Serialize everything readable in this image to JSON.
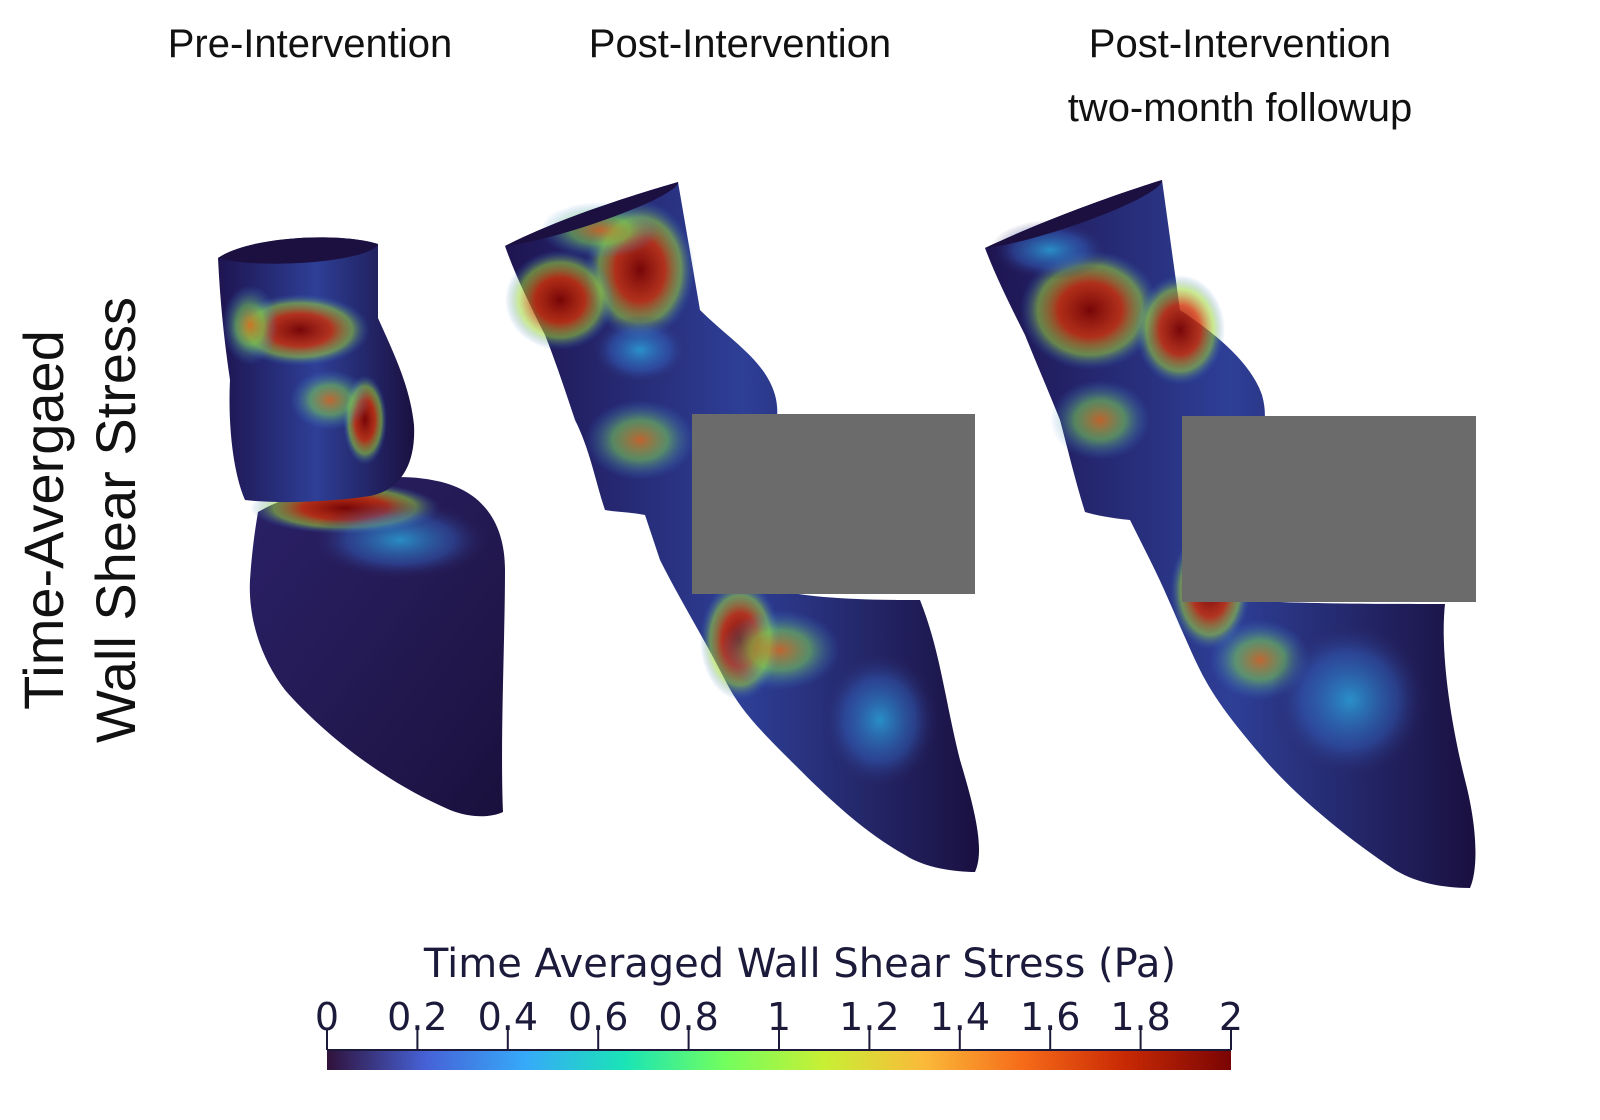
{
  "panels": [
    {
      "title_line1": "Pre-Intervention",
      "title_line2": ""
    },
    {
      "title_line1": "Post-Intervention",
      "title_line2": ""
    },
    {
      "title_line1": "Post-Intervention",
      "title_line2": "two-month followup"
    }
  ],
  "row_label": {
    "line1": "Time-Avergaed",
    "line2": "Wall Shear Stress"
  },
  "colorbar": {
    "title": "Time Averaged Wall Shear Stress (Pa)",
    "ticks": [
      "0",
      "0.2",
      "0.4",
      "0.6",
      "0.8",
      "1",
      "1.2",
      "1.4",
      "1.6",
      "1.8",
      "2"
    ],
    "range": [
      0,
      2
    ],
    "colormap": [
      "#30123b",
      "#4662d7",
      "#36aaf9",
      "#1ae4b6",
      "#72fe5e",
      "#c8ef34",
      "#faba39",
      "#f66b19",
      "#ca2a04",
      "#7a0403"
    ]
  },
  "redaction_color": "#6b6b6b"
}
